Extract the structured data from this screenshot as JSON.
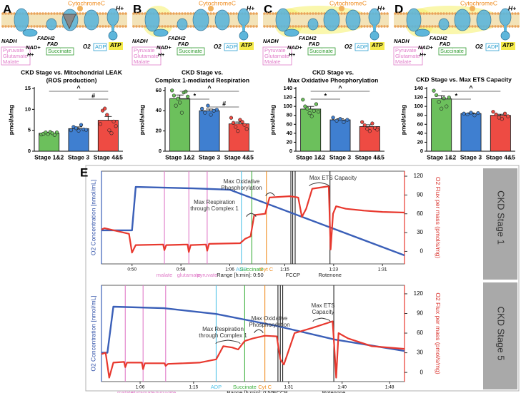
{
  "panel_letters": [
    "A",
    "B",
    "C",
    "D",
    "E"
  ],
  "diagram": {
    "labels": {
      "cytochrome": "CytochromeC",
      "hplus": "H+",
      "nadh": "NADH",
      "nadplus": "NAD+",
      "fadh2": "FADH2",
      "fad": "FAD",
      "succinate": "Succinate",
      "pyruvate": "Pyruvate",
      "glutamate": "Glutamate",
      "malate": "Malate",
      "o2": "O2",
      "adp": "ADP",
      "atp": "ATP"
    }
  },
  "chart_data": [
    {
      "type": "bar",
      "title": "CKD Stage vs. Mitochondrial LEAK",
      "subtitle": "(ROS production)",
      "ylabel": "pmol/s/mg",
      "categories": [
        "Stage 1&2",
        "Stage 3",
        "Stage 4&5"
      ],
      "colors": [
        "#6cc05c",
        "#3f7fd0",
        "#ee4b43"
      ],
      "values": [
        4.3,
        5.4,
        7.4
      ],
      "errors": [
        0.2,
        0.4,
        0.9
      ],
      "points": [
        [
          4.0,
          4.2,
          4.5,
          4.1,
          4.6,
          4.3,
          3.9,
          4.5
        ],
        [
          5.0,
          5.8,
          5.5,
          4.9,
          6.3,
          5.2,
          5.1
        ],
        [
          6.5,
          9.7,
          10.2,
          8.7,
          5.0,
          4.3,
          7.1,
          6.0
        ]
      ],
      "ylim": [
        0,
        15
      ],
      "yticks": [
        0,
        5,
        10,
        15
      ],
      "annotations": [
        {
          "text": "^",
          "between": [
            "Stage 1&2",
            "Stage 4&5"
          ]
        },
        {
          "text": "#",
          "between": [
            "Stage 3",
            "Stage 4&5"
          ]
        }
      ]
    },
    {
      "type": "bar",
      "title": "CKD Stage vs.",
      "subtitle": "Complex 1-mediated Respiration",
      "ylabel": "pmol/s/mg",
      "categories": [
        "Stage 1&2",
        "Stage 3",
        "Stage 4&5"
      ],
      "colors": [
        "#6cc05c",
        "#3f7fd0",
        "#ee4b43"
      ],
      "values": [
        52,
        40,
        27
      ],
      "errors": [
        3.5,
        1.6,
        1.8
      ],
      "points": [
        [
          60,
          55,
          45,
          52,
          48,
          38,
          58,
          59,
          54
        ],
        [
          42,
          38,
          45,
          36,
          40,
          41
        ],
        [
          33,
          28,
          24,
          20,
          31,
          29,
          26,
          22
        ]
      ],
      "ylim": [
        0,
        62
      ],
      "yticks": [
        0,
        20,
        40,
        60
      ],
      "annotations": [
        {
          "text": "^",
          "between": [
            "Stage 1&2",
            "Stage 4&5"
          ]
        },
        {
          "text": "*",
          "between": [
            "Stage 1&2",
            "Stage 3"
          ]
        },
        {
          "text": "#",
          "between": [
            "Stage 3",
            "Stage 4&5"
          ]
        }
      ]
    },
    {
      "type": "bar",
      "title": "CKD Stage vs.",
      "subtitle": "Max Oxidative Phosphorylation",
      "ylabel": "pmol/s/mg",
      "categories": [
        "Stage 1&2",
        "Stage 3",
        "Stage 4&5"
      ],
      "colors": [
        "#6cc05c",
        "#3f7fd0",
        "#ee4b43"
      ],
      "values": [
        94,
        70,
        55
      ],
      "errors": [
        6,
        2.5,
        4
      ],
      "points": [
        [
          115,
          100,
          95,
          85,
          78,
          90,
          105,
          88
        ],
        [
          75,
          68,
          72,
          65,
          70
        ],
        [
          65,
          58,
          50,
          45,
          62,
          52,
          48
        ]
      ],
      "ylim": [
        0,
        140
      ],
      "yticks": [
        0,
        20,
        40,
        60,
        80,
        100,
        120,
        140
      ],
      "annotations": [
        {
          "text": "^",
          "between": [
            "Stage 1&2",
            "Stage 4&5"
          ]
        },
        {
          "text": "*",
          "between": [
            "Stage 1&2",
            "Stage 3"
          ]
        }
      ]
    },
    {
      "type": "bar",
      "title": "CKD Stage vs. Max ETS Capacity",
      "ylabel": "pmol/s/mg",
      "categories": [
        "Stage 1&2",
        "Stage 3",
        "Stage 4&5"
      ],
      "colors": [
        "#6cc05c",
        "#3f7fd0",
        "#ee4b43"
      ],
      "values": [
        117,
        84,
        80
      ],
      "errors": [
        7,
        1.5,
        2.5
      ],
      "points": [
        [
          135,
          125,
          110,
          95,
          118,
          100,
          120
        ],
        [
          84,
          82,
          86,
          80,
          85
        ],
        [
          88,
          82,
          75,
          72,
          84,
          78
        ]
      ],
      "ylim": [
        0,
        140
      ],
      "yticks": [
        0,
        20,
        40,
        60,
        80,
        100,
        120,
        140
      ],
      "annotations": [
        {
          "text": "^",
          "between": [
            "Stage 1&2",
            "Stage 4&5"
          ]
        },
        {
          "text": "*",
          "between": [
            "Stage 1&2",
            "Stage 3"
          ]
        }
      ]
    },
    {
      "type": "line",
      "ylabel": "O2 Concentration [nmol/mL]",
      "y2label": "O2 Flux per mass (pmol/s/mg)",
      "side_label": "CKD Stage 1",
      "range_label": "Range [h:min]: 0:50",
      "xlim": [
        45,
        94.6
      ],
      "xticks": [
        {
          "value": 50,
          "label": "0:50"
        },
        {
          "value": 58,
          "label": "0:58"
        },
        {
          "value": 66,
          "label": "1:06"
        },
        {
          "value": 75,
          "label": "1:15"
        },
        {
          "value": 83,
          "label": "1:23"
        },
        {
          "value": 91,
          "label": "1:31"
        }
      ],
      "ylim": [
        0,
        400
      ],
      "y2lim": [
        -20,
        128
      ],
      "y2ticks": [
        0,
        30,
        60,
        90,
        120
      ],
      "series": [
        {
          "color": "#3a5fb8",
          "x": [
            45,
            50,
            50.6,
            60,
            66,
            94.6
          ],
          "values": [
            145,
            145,
            332,
            326,
            320,
            37
          ]
        },
        {
          "color": "#e8382e",
          "axis": "y2",
          "x": [
            45,
            45.5,
            49.5,
            50,
            50.6,
            55.1,
            55.3,
            55.6,
            59.1,
            59.3,
            59.6,
            62.1,
            62.3,
            62.6,
            67.7,
            68.5,
            69.4,
            70,
            71.8,
            72.5,
            75.8,
            76.6,
            77.2,
            77.8,
            78.5,
            79.5,
            82.2,
            82.5,
            82.9,
            83.4,
            85,
            88,
            91,
            94.6
          ],
          "values": [
            35,
            37,
            28,
            -2,
            10,
            11,
            2,
            10,
            11,
            -1,
            10,
            11,
            1,
            12,
            13,
            20,
            24,
            58,
            60,
            86,
            88,
            87,
            86,
            55,
            68,
            100,
            104,
            3,
            60,
            72,
            68,
            65,
            63,
            62
          ]
        }
      ],
      "events": [
        {
          "label": "malate",
          "x": 55.3,
          "color": "#e07ac8"
        },
        {
          "label": "glutamate",
          "x": 59.3,
          "color": "#e07ac8"
        },
        {
          "label": "pyruvate",
          "x": 62.3,
          "color": "#e07ac8"
        },
        {
          "label": "ADP",
          "x": 67.9,
          "color": "#52c3e8"
        },
        {
          "label": "Succinate",
          "x": 69.6,
          "color": "#3db03d"
        },
        {
          "label": "Cyt C",
          "x": 72.0,
          "color": "#f08c1e"
        },
        {
          "label": "FCCP",
          "x": [
            76.0,
            76.3,
            76.7
          ],
          "color": "#222222"
        },
        {
          "label": "Rotenone",
          "x": 82.4,
          "color": "#222222"
        }
      ],
      "annotations": [
        {
          "text": [
            "Max Respiration",
            "through Complex 1"
          ]
        },
        {
          "text": [
            "Max Oxidative",
            "Phosphorylation"
          ]
        },
        {
          "text": [
            "Max ETS Capacity"
          ]
        }
      ]
    },
    {
      "type": "line",
      "ylabel": "O2 Concentration [nmol/mL]",
      "y2label": "O2 Flux per mass (pmol/s/mg)",
      "side_label": "CKD Stage 5",
      "range_label": "Range [h:min]: 0:50",
      "xlim": [
        59.5,
        110.5
      ],
      "xticks": [
        {
          "value": 66,
          "label": "1:06"
        },
        {
          "value": 75,
          "label": "1:15"
        },
        {
          "value": 91,
          "label": "1:31"
        },
        {
          "value": 100,
          "label": "1:40"
        },
        {
          "value": 108,
          "label": "1:48"
        }
      ],
      "ylim": [
        0,
        400
      ],
      "y2lim": [
        -14,
        133
      ],
      "y2ticks": [
        0,
        30,
        60,
        90,
        120
      ],
      "series": [
        {
          "color": "#3a5fb8",
          "x": [
            59.5,
            60.5,
            61.5,
            70,
            78.8,
            89,
            98.7,
            110.5
          ],
          "values": [
            120,
            120,
            311,
            305,
            281,
            231,
            175,
            127
          ]
        },
        {
          "color": "#e8382e",
          "axis": "y2",
          "x": [
            59.5,
            60.2,
            60.8,
            61.5,
            63.3,
            63.5,
            63.8,
            66.3,
            66.5,
            66.8,
            70.1,
            70.3,
            70.7,
            76,
            78.8,
            80,
            81.5,
            82.5,
            83.6,
            85,
            87,
            89,
            89.6,
            90.2,
            92,
            95,
            98.4,
            98.6,
            99,
            99.4,
            101,
            105,
            110.5
          ],
          "values": [
            28,
            30,
            -8,
            15,
            16,
            8,
            15,
            15,
            5,
            14,
            14,
            10,
            13,
            15,
            20,
            40,
            38,
            35,
            48,
            52,
            56,
            55,
            20,
            12,
            60,
            68,
            78,
            50,
            -8,
            60,
            52,
            40,
            36
          ]
        }
      ],
      "events": [
        {
          "label": "malate",
          "x": 63.5,
          "color": "#e07ac8"
        },
        {
          "label": "glutamate",
          "x": 66.5,
          "color": "#e07ac8"
        },
        {
          "label": "pyruvate",
          "x": 70.3,
          "color": "#e07ac8"
        },
        {
          "label": "ADP",
          "x": 78.8,
          "color": "#52c3e8"
        },
        {
          "label": "Succinate",
          "x": 83.6,
          "color": "#3db03d"
        },
        {
          "label": "Cyt C",
          "x": 87.0,
          "color": "#f08c1e"
        },
        {
          "label": "FCCP",
          "x": [
            89.2,
            89.6,
            90.0
          ],
          "color": "#222222"
        },
        {
          "label": "Rotenone",
          "x": 98.6,
          "color": "#222222"
        }
      ],
      "annotations": [
        {
          "text": [
            "Max Respiration",
            "through Complex 1"
          ]
        },
        {
          "text": [
            "Max Oxidative",
            "Phosphorylation"
          ]
        },
        {
          "text": [
            "Max ETS",
            "Capacity"
          ]
        }
      ]
    }
  ]
}
